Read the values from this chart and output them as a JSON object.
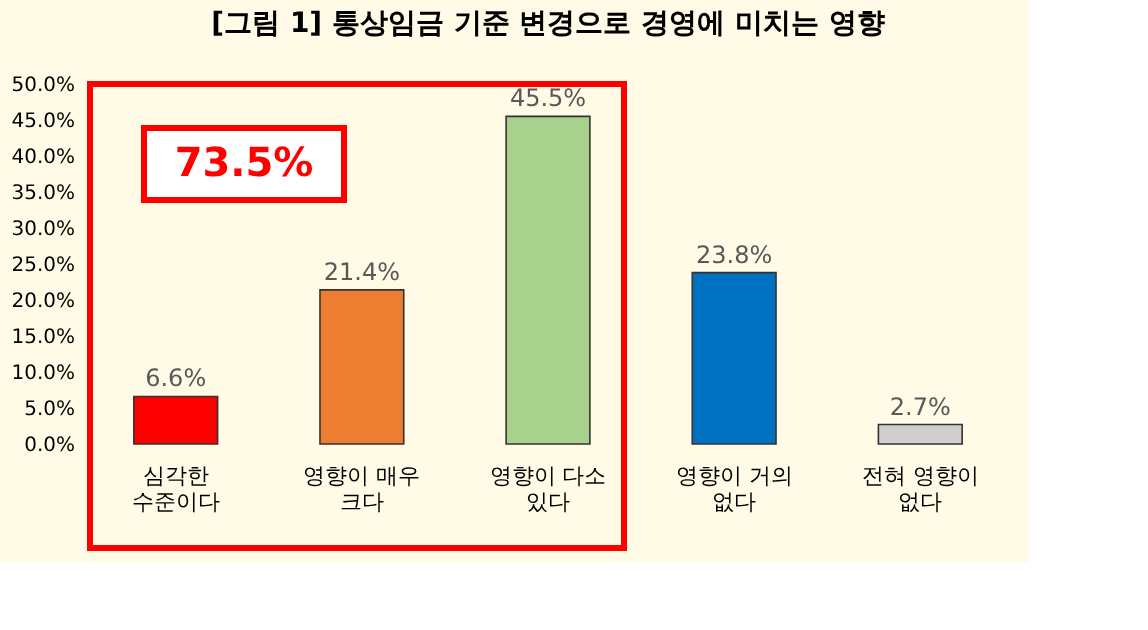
{
  "chart_data": {
    "type": "bar",
    "title": "[그림 1] 통상임금 기준 변경으로 경영에 미치는 영향",
    "categories": [
      "심각한\n수준이다",
      "영향이 매우\n크다",
      "영향이 다소\n있다",
      "영향이 거의\n없다",
      "전혀 영향이\n없다"
    ],
    "values": [
      6.6,
      21.4,
      45.5,
      23.8,
      2.7
    ],
    "colors": [
      "#ff0000",
      "#ed7d31",
      "#a9d18e",
      "#0070c0",
      "#d0cece"
    ],
    "value_labels": [
      "6.6%",
      "21.4%",
      "45.5%",
      "23.8%",
      "2.7%"
    ],
    "ylim": [
      0,
      50
    ],
    "yticks": [
      {
        "value": 0,
        "label": "0.0%"
      },
      {
        "value": 5,
        "label": "5.0%"
      },
      {
        "value": 10,
        "label": "10.0%"
      },
      {
        "value": 15,
        "label": "15.0%"
      },
      {
        "value": 20,
        "label": "20.0%"
      },
      {
        "value": 25,
        "label": "25.0%"
      },
      {
        "value": 30,
        "label": "30.0%"
      },
      {
        "value": 35,
        "label": "35.0%"
      },
      {
        "value": 40,
        "label": "40.0%"
      },
      {
        "value": 45,
        "label": "45.0%"
      },
      {
        "value": 50,
        "label": "50.0%"
      }
    ],
    "annotations": [
      "73.5%"
    ],
    "grid": false
  }
}
